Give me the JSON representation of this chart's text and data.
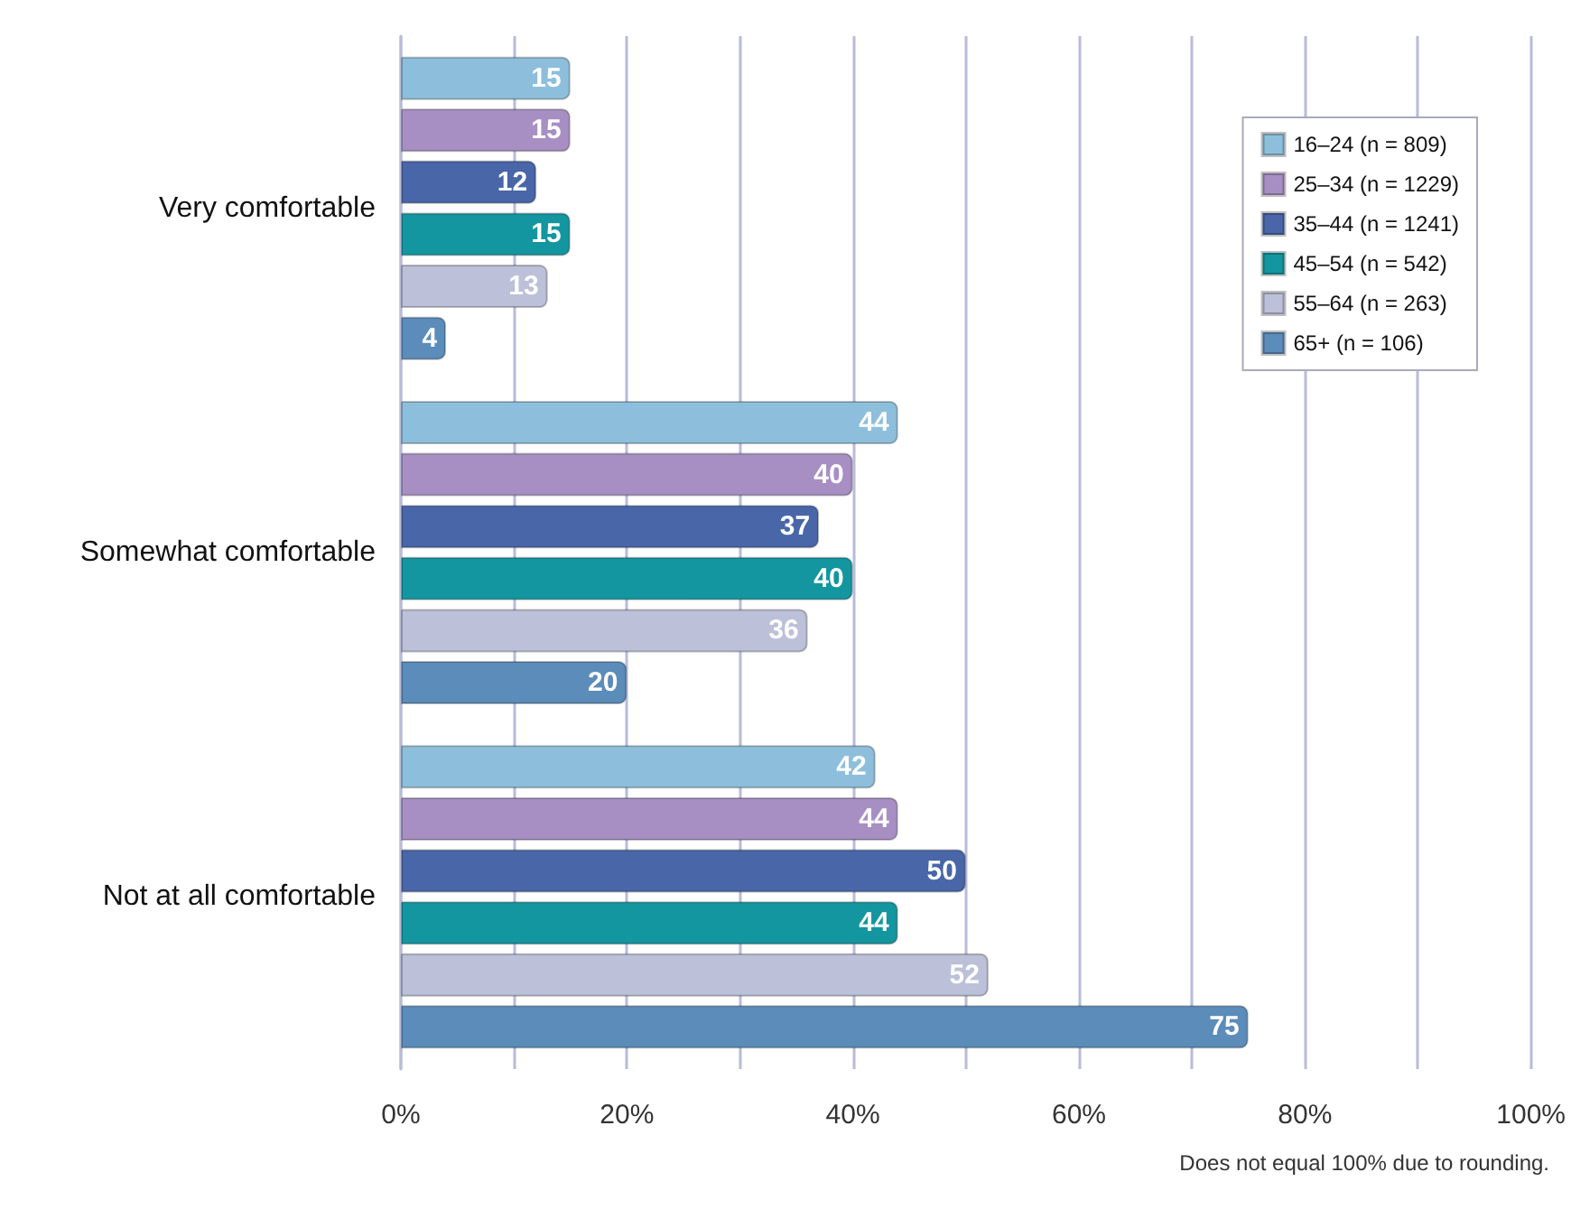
{
  "chart_data": {
    "type": "bar",
    "orientation": "horizontal",
    "categories": [
      "Very comfortable",
      "Somewhat comfortable",
      "Not at all comfortable"
    ],
    "series": [
      {
        "name": "16–24 (n = 809)",
        "color": "#8dbfdc",
        "values": [
          15,
          44,
          42
        ]
      },
      {
        "name": "25–34 (n = 1229)",
        "color": "#a78fc4",
        "values": [
          15,
          40,
          44
        ]
      },
      {
        "name": "35–44 (n = 1241)",
        "color": "#4866a8",
        "values": [
          12,
          37,
          50
        ]
      },
      {
        "name": "45–54 (n = 542)",
        "color": "#13969f",
        "values": [
          15,
          40,
          44
        ]
      },
      {
        "name": "55–64 (n = 263)",
        "color": "#bcc0d8",
        "values": [
          13,
          36,
          52
        ]
      },
      {
        "name": "65+ (n = 106)",
        "color": "#5b8cba",
        "values": [
          4,
          20,
          75
        ]
      }
    ],
    "xlim": [
      0,
      100
    ],
    "xticks": [
      {
        "value": 0,
        "label": "0%"
      },
      {
        "value": 10,
        "label": null
      },
      {
        "value": 20,
        "label": "20%"
      },
      {
        "value": 30,
        "label": null
      },
      {
        "value": 40,
        "label": "40%"
      },
      {
        "value": 50,
        "label": null
      },
      {
        "value": 60,
        "label": "60%"
      },
      {
        "value": 70,
        "label": null
      },
      {
        "value": 80,
        "label": "80%"
      },
      {
        "value": 90,
        "label": null
      },
      {
        "value": 100,
        "label": "100%"
      }
    ],
    "grid": "x",
    "legend": "top right",
    "data_labels": true,
    "annotations": [
      "Does not equal 100% due to rounding."
    ]
  }
}
